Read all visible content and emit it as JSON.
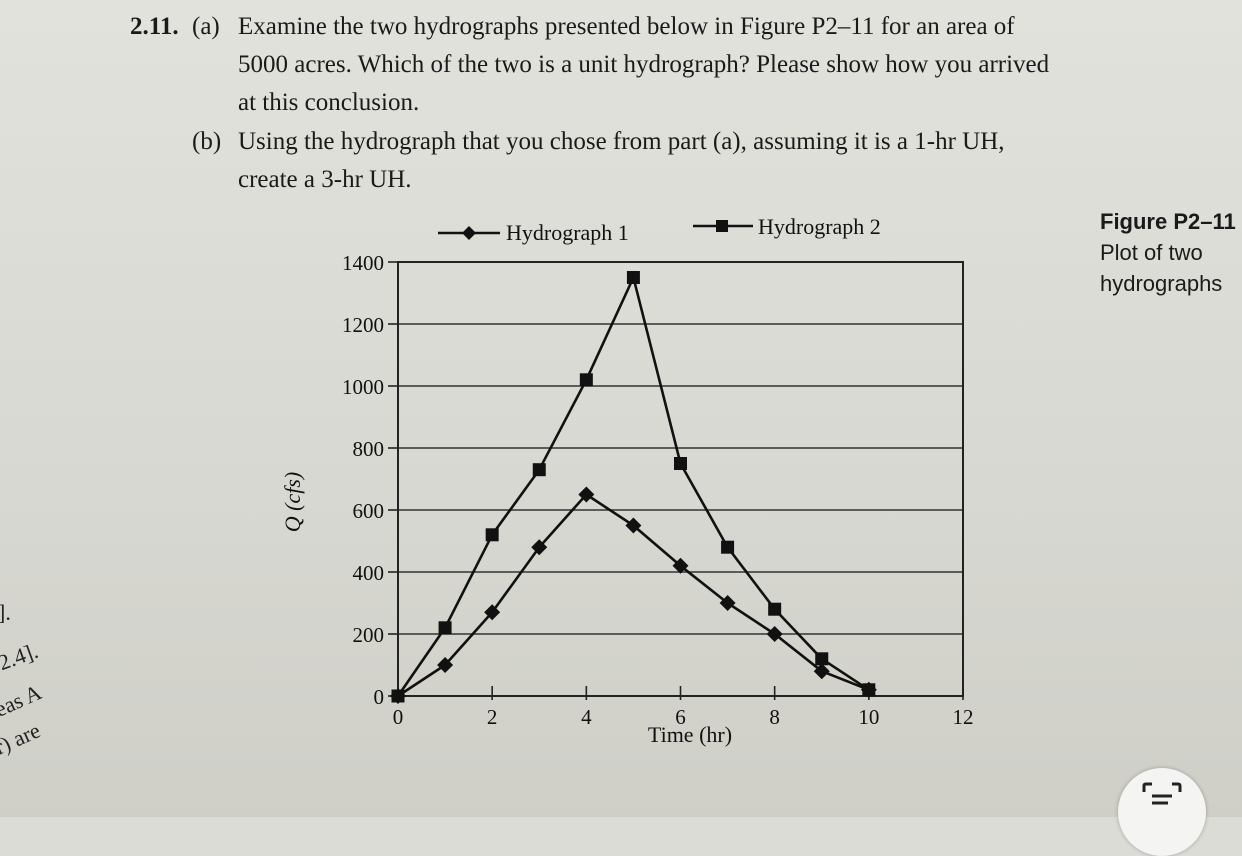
{
  "problem": {
    "number": "2.11.",
    "part_a_label": "(a)",
    "part_a_text": "Examine the two hydrographs presented below in Figure P2–11 for an area of 5000 acres. Which of the two is a unit hydrograph? Please show how you arrived at this conclusion.",
    "part_b_label": "(b)",
    "part_b_text": "Using the hydrograph that you chose from part (a), assuming it is a 1-hr UH, create a 3-hr UH."
  },
  "figure": {
    "label": "Figure P2–11",
    "caption": "Plot of two hydrographs"
  },
  "left_edge_text": [
    "].",
    "2.4].",
    "eas A",
    "r) are"
  ],
  "chart_data": {
    "type": "line",
    "xlabel": "Time (hr)",
    "ylabel": "Q (cfs)",
    "xlim": [
      0,
      12
    ],
    "ylim": [
      0,
      1400
    ],
    "x_ticks": [
      0,
      2,
      4,
      6,
      8,
      10,
      12
    ],
    "y_ticks": [
      0,
      200,
      400,
      600,
      800,
      1000,
      1200,
      1400
    ],
    "grid": "horizontal",
    "legend_position": "top",
    "series": [
      {
        "name": "Hydrograph 1",
        "marker": "diamond",
        "color": "#111111",
        "x": [
          0,
          1,
          2,
          3,
          4,
          5,
          6,
          7,
          8,
          9,
          10
        ],
        "y": [
          0,
          100,
          270,
          480,
          650,
          550,
          420,
          300,
          200,
          80,
          20
        ]
      },
      {
        "name": "Hydrograph 2",
        "marker": "square",
        "color": "#111111",
        "x": [
          0,
          1,
          2,
          3,
          4,
          5,
          6,
          7,
          8,
          9,
          10
        ],
        "y": [
          0,
          220,
          520,
          730,
          1020,
          1350,
          750,
          480,
          280,
          120,
          20
        ]
      }
    ]
  }
}
